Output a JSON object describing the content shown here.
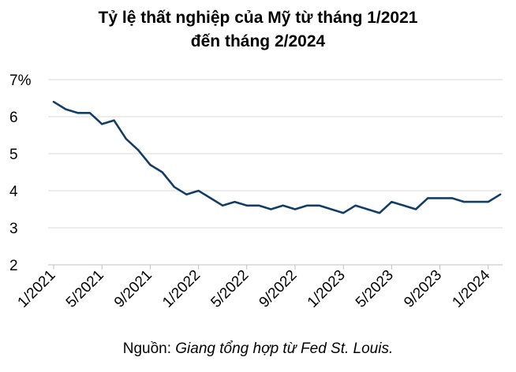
{
  "chart_data": {
    "type": "line",
    "title_line1": "Tỷ lệ thất nghiệp của Mỹ từ tháng 1/2021",
    "title_line2": "đến tháng 2/2024",
    "y_unit": "%",
    "ylim": [
      2,
      7
    ],
    "y_ticks": [
      2,
      3,
      4,
      5,
      6,
      7
    ],
    "y_tick_labels": [
      "2",
      "3",
      "4",
      "5",
      "6",
      "7%"
    ],
    "x_tick_labels": [
      "1/2021",
      "5/2021",
      "9/2021",
      "1/2022",
      "5/2022",
      "9/2022",
      "1/2023",
      "5/2023",
      "9/2023",
      "1/2024"
    ],
    "grid": true,
    "color": "#123e66",
    "series": [
      {
        "x": [
          "1/2021",
          "2/2021",
          "3/2021",
          "4/2021",
          "5/2021",
          "6/2021",
          "7/2021",
          "8/2021",
          "9/2021",
          "10/2021",
          "11/2021",
          "12/2021",
          "1/2022",
          "2/2022",
          "3/2022",
          "4/2022",
          "5/2022",
          "6/2022",
          "7/2022",
          "8/2022",
          "9/2022",
          "10/2022",
          "11/2022",
          "12/2022",
          "1/2023",
          "2/2023",
          "3/2023",
          "4/2023",
          "5/2023",
          "6/2023",
          "7/2023",
          "8/2023",
          "9/2023",
          "10/2023",
          "11/2023",
          "12/2023",
          "1/2024",
          "2/2024"
        ],
        "values": [
          6.4,
          6.2,
          6.1,
          6.1,
          5.8,
          5.9,
          5.4,
          5.1,
          4.7,
          4.5,
          4.1,
          3.9,
          4.0,
          3.8,
          3.6,
          3.7,
          3.6,
          3.6,
          3.5,
          3.6,
          3.5,
          3.6,
          3.6,
          3.5,
          3.4,
          3.6,
          3.5,
          3.4,
          3.7,
          3.6,
          3.5,
          3.8,
          3.8,
          3.8,
          3.7,
          3.7,
          3.7,
          3.9
        ]
      }
    ]
  },
  "source": {
    "label": "Nguồn: ",
    "text": "Giang tổng hợp từ Fed St. Louis."
  }
}
